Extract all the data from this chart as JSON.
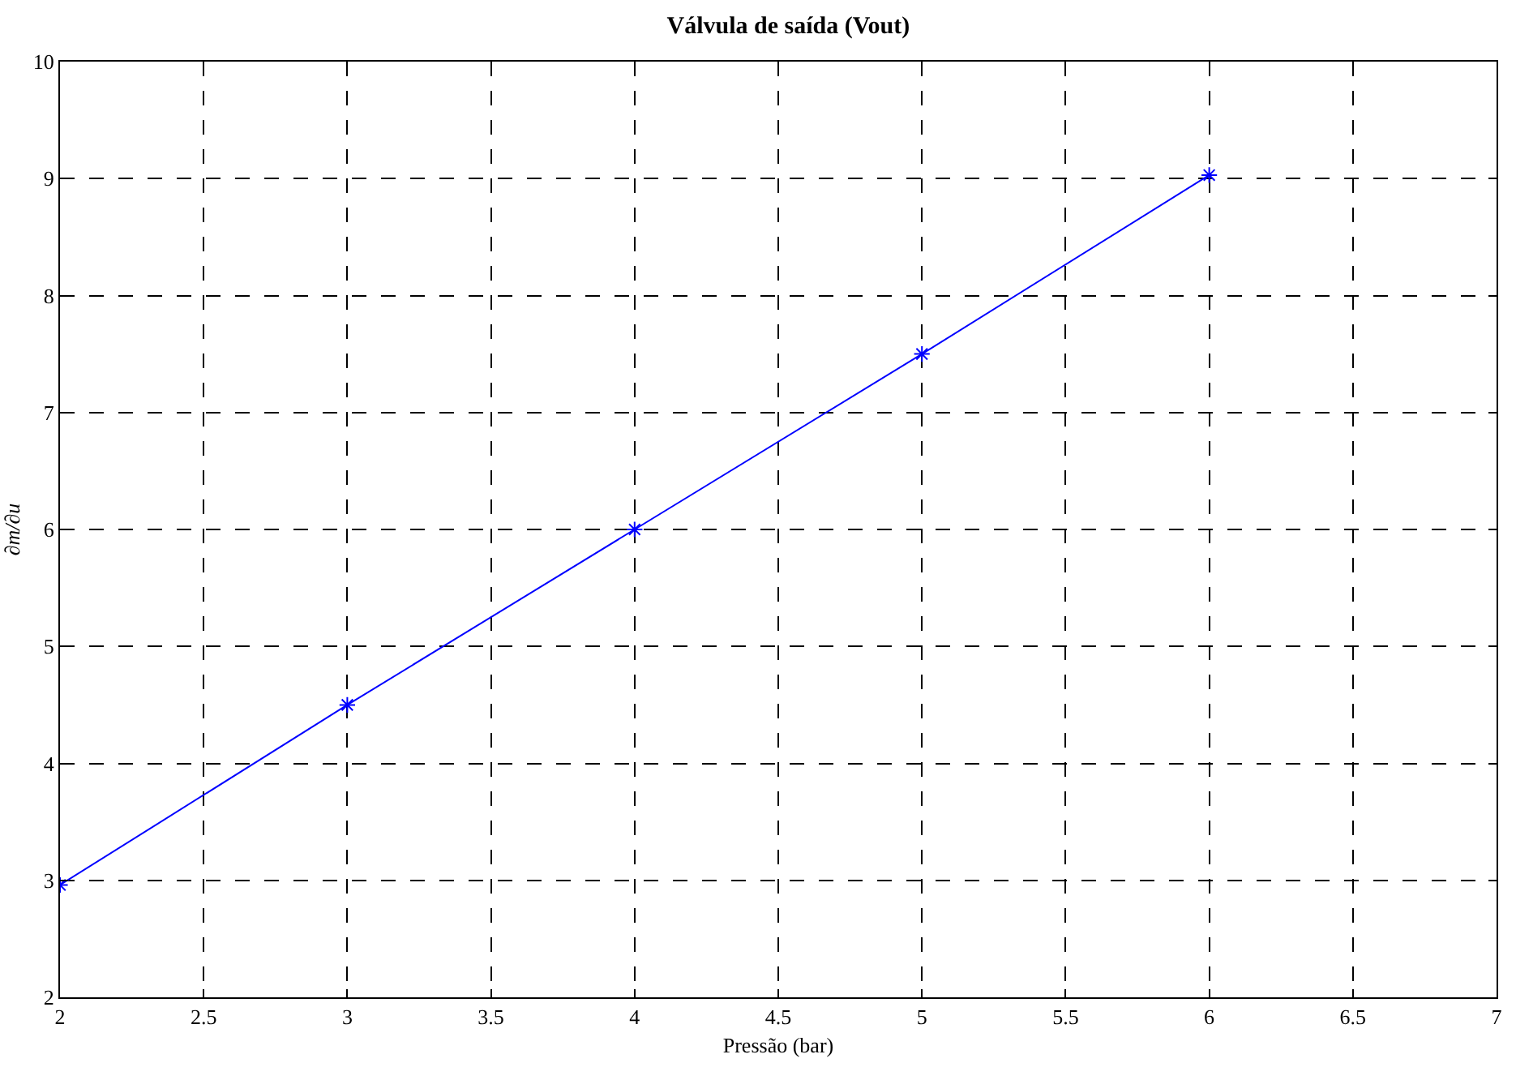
{
  "chart_data": {
    "type": "line",
    "title": "Válvula de saída (Vout)",
    "xlabel": "Pressão (bar)",
    "ylabel": "∂m/∂u",
    "x": [
      2,
      3,
      4,
      5,
      6
    ],
    "series": [
      {
        "color": "#0000ff",
        "values": [
          2.96,
          4.5,
          6.0,
          7.5,
          9.03
        ]
      }
    ],
    "xlim": [
      2,
      7
    ],
    "xticks": [
      2,
      2.5,
      3,
      3.5,
      4,
      4.5,
      5,
      5.5,
      6,
      6.5,
      7
    ],
    "ylim": [
      2,
      10
    ],
    "yticks": [
      2,
      3,
      4,
      5,
      6,
      7,
      8,
      9,
      10
    ],
    "grid": true,
    "marker": "cross",
    "line_style": "solid"
  }
}
